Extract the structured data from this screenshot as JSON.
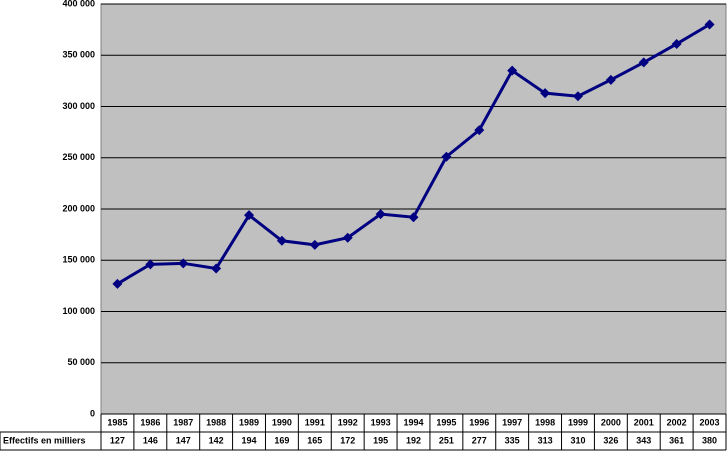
{
  "chart_data": {
    "type": "line",
    "categories": [
      "1985",
      "1986",
      "1987",
      "1988",
      "1989",
      "1990",
      "1991",
      "1992",
      "1993",
      "1994",
      "1995",
      "1996",
      "1997",
      "1998",
      "1999",
      "2000",
      "2001",
      "2002",
      "2003"
    ],
    "series": [
      {
        "name": "Effectifs en milliers",
        "color": "#000080",
        "values": [
          127000,
          146000,
          147000,
          142000,
          194000,
          169000,
          165000,
          172000,
          195000,
          192000,
          251000,
          277000,
          335000,
          313000,
          310000,
          326000,
          343000,
          361000,
          380000
        ],
        "value_labels": [
          "127",
          "146",
          "147",
          "142",
          "194",
          "169",
          "165",
          "172",
          "195",
          "192",
          "251",
          "277",
          "335",
          "313",
          "310",
          "326",
          "343",
          "361",
          "380"
        ]
      }
    ],
    "ylim": [
      0,
      400000
    ],
    "yticks": [
      0,
      {
        "value": 50000,
        "label": "50 000"
      },
      {
        "value": 100000,
        "label": "100 000"
      },
      {
        "value": 150000,
        "label": "150 000"
      },
      {
        "value": 200000,
        "label": "200 000"
      },
      {
        "value": 250000,
        "label": "250 000"
      },
      {
        "value": 300000,
        "label": "300 000"
      },
      {
        "value": 350000,
        "label": "350 000"
      },
      {
        "value": 400000,
        "label": "400 000"
      }
    ],
    "grid": true,
    "background": "#c0c0c0"
  }
}
